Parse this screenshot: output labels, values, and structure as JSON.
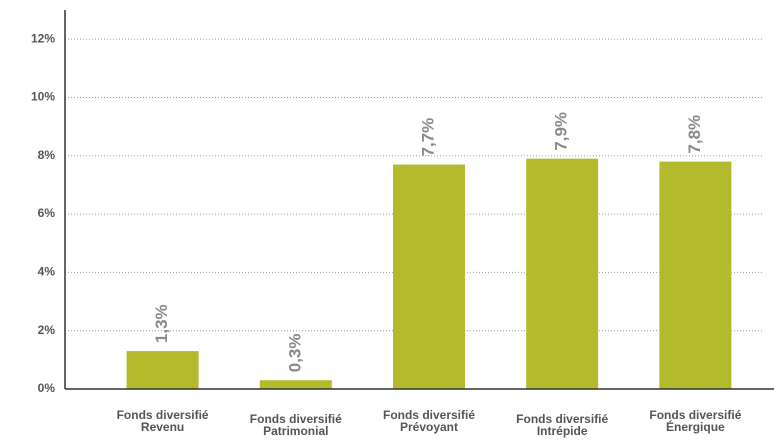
{
  "chart_data": {
    "type": "bar",
    "categories": [
      "Fonds diversifié Revenu",
      "Fonds diversifié Patrimonial",
      "Fonds diversifié Prévoyant",
      "Fonds diversifié Intrépide",
      "Fonds diversifié Énergique"
    ],
    "values": [
      1.3,
      0.3,
      7.7,
      7.9,
      7.8
    ],
    "value_labels": [
      "1,3%",
      "0,3%",
      "7,7%",
      "7,9%",
      "7,8%"
    ],
    "color": "#b3bb2c",
    "ylim": [
      0,
      13
    ],
    "yticks": [
      {
        "value": 0,
        "label": "0%"
      },
      {
        "value": 2,
        "label": "2%"
      },
      {
        "value": 4,
        "label": "4%"
      },
      {
        "value": 6,
        "label": "6%"
      },
      {
        "value": 8,
        "label": "8%"
      },
      {
        "value": 10,
        "label": "10%"
      },
      {
        "value": 12,
        "label": "12%"
      }
    ],
    "grid": true
  }
}
